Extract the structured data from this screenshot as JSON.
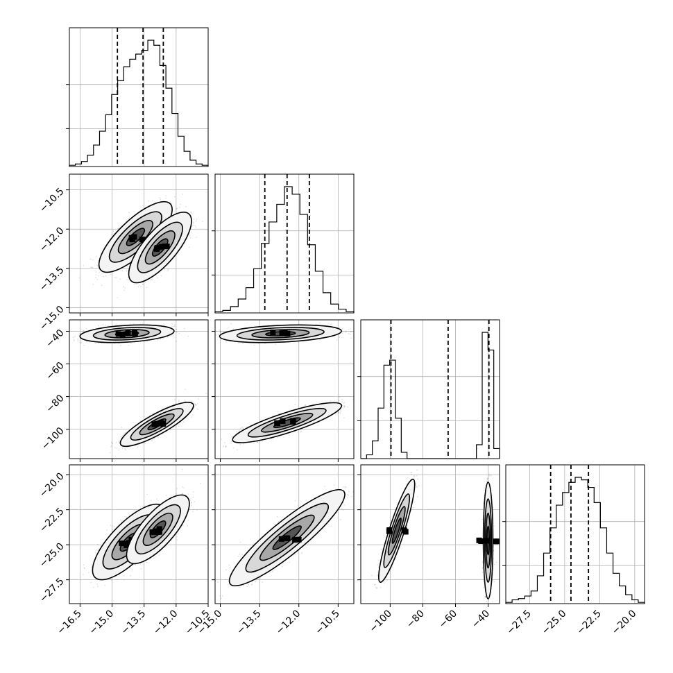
{
  "chart_data": {
    "type": "scatter",
    "title": "",
    "layout": "corner plot (lower-triangular matrix, 4x4)",
    "parameters": [
      {
        "range": [
          -17.0,
          -10.5
        ],
        "ticks": [
          -16.5,
          -15.0,
          -13.5,
          -12.0,
          -10.5
        ],
        "tick_labels": [
          "−16.5",
          "−15.0",
          "−13.5",
          "−12.0",
          "−10.5"
        ]
      },
      {
        "range": [
          -15.2,
          -9.9
        ],
        "ticks": [
          -15.0,
          -13.5,
          -12.0,
          -10.5
        ],
        "tick_labels": [
          "−15.0",
          "−13.5",
          "−12.0",
          "−10.5"
        ]
      },
      {
        "range": [
          -118,
          -33
        ],
        "ticks": [
          -100,
          -80,
          -60,
          -40
        ],
        "tick_labels": [
          "−100",
          "−80",
          "−60",
          "−40"
        ]
      },
      {
        "range": [
          -29.2,
          -19.3
        ],
        "ticks": [
          -27.5,
          -25.0,
          -22.5,
          -20.0
        ],
        "tick_labels": [
          "−27.5",
          "−25.0",
          "−22.5",
          "−20.0"
        ]
      }
    ],
    "histograms": [
      {
        "counts": [
          1,
          2,
          4,
          9,
          17,
          28,
          41,
          57,
          68,
          79,
          85,
          89,
          92,
          100,
          96,
          80,
          62,
          42,
          24,
          12,
          5,
          2,
          1
        ],
        "quantiles": [
          -14.75,
          -13.55,
          -12.6
        ]
      },
      {
        "counts": [
          1,
          2,
          5,
          11,
          20,
          35,
          55,
          72,
          86,
          100,
          94,
          78,
          54,
          33,
          16,
          7,
          3,
          1
        ],
        "quantiles": [
          -13.3,
          -12.45,
          -11.6
        ]
      },
      {
        "counts": [
          0,
          3,
          14,
          40,
          74,
          78,
          32,
          5,
          0,
          0,
          0,
          0,
          0,
          0,
          0,
          0,
          0,
          0,
          0,
          0,
          11,
          100,
          86,
          8
        ],
        "quantiles": [
          -99.5,
          -64.5,
          -39.5
        ]
      },
      {
        "counts": [
          1,
          3,
          4,
          6,
          10,
          22,
          40,
          60,
          78,
          88,
          96,
          100,
          98,
          92,
          80,
          60,
          40,
          24,
          14,
          7,
          3,
          1
        ],
        "quantiles": [
          -26.0,
          -24.55,
          -23.3
        ]
      }
    ],
    "pairs": [
      {
        "x_param": 0,
        "y_param": 1,
        "modes": [
          {
            "mean": [
              -13.9,
              -12.3
            ],
            "sd": [
              0.7,
              0.55
            ],
            "corr": 0.78
          },
          {
            "mean": [
              -12.75,
              -12.7
            ],
            "sd": [
              0.6,
              0.55
            ],
            "corr": 0.75
          }
        ]
      },
      {
        "x_param": 0,
        "y_param": 2,
        "modes": [
          {
            "mean": [
              -14.3,
              -41.5
            ],
            "sd": [
              0.9,
              2.2
            ],
            "corr": 0.3
          },
          {
            "mean": [
              -12.9,
              -97
            ],
            "sd": [
              0.7,
              5.5
            ],
            "corr": 0.85
          }
        ]
      },
      {
        "x_param": 1,
        "y_param": 2,
        "modes": [
          {
            "mean": [
              -12.7,
              -41.5
            ],
            "sd": [
              0.95,
              2.2
            ],
            "corr": 0.3
          },
          {
            "mean": [
              -12.45,
              -96
            ],
            "sd": [
              0.85,
              5.0
            ],
            "corr": 0.85
          }
        ]
      },
      {
        "x_param": 0,
        "y_param": 3,
        "modes": [
          {
            "mean": [
              -14.2,
              -24.8
            ],
            "sd": [
              0.7,
              1.1
            ],
            "corr": 0.75
          },
          {
            "mean": [
              -12.85,
              -23.9
            ],
            "sd": [
              0.6,
              1.0
            ],
            "corr": 0.75
          }
        ]
      },
      {
        "x_param": 1,
        "y_param": 3,
        "modes": [
          {
            "mean": [
              -12.45,
              -24.5
            ],
            "sd": [
              0.9,
              1.4
            ],
            "corr": 0.9
          }
        ]
      },
      {
        "x_param": 2,
        "y_param": 3,
        "modes": [
          {
            "mean": [
              -96,
              -24.0
            ],
            "sd": [
              4.5,
              1.5
            ],
            "corr": 0.9
          },
          {
            "mean": [
              -40,
              -24.7
            ],
            "sd": [
              1.2,
              1.7
            ],
            "corr": 0.0
          }
        ]
      }
    ],
    "grid": true
  }
}
